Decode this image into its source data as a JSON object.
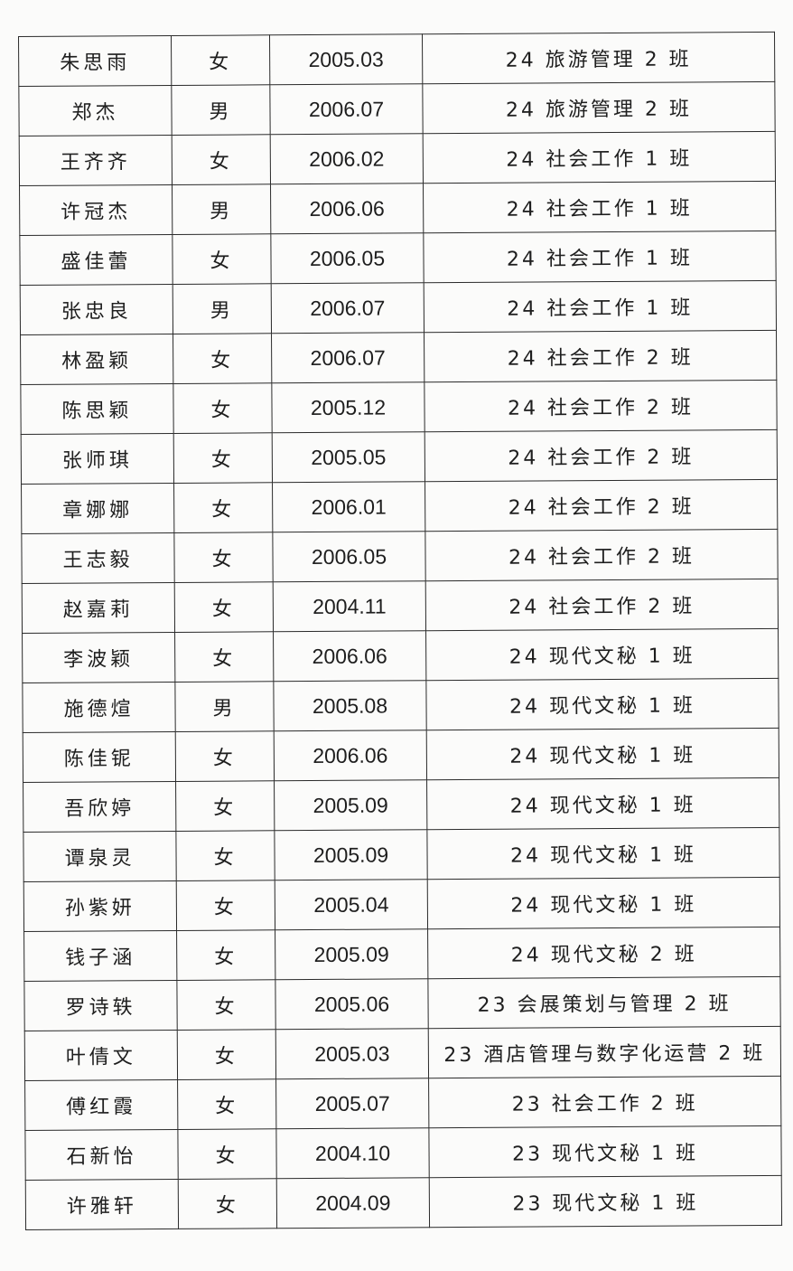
{
  "rows": [
    {
      "name": "朱思雨",
      "gender": "女",
      "birth": "2005.03",
      "class": "24 旅游管理 2 班"
    },
    {
      "name": "郑杰",
      "gender": "男",
      "birth": "2006.07",
      "class": "24 旅游管理 2 班"
    },
    {
      "name": "王齐齐",
      "gender": "女",
      "birth": "2006.02",
      "class": "24 社会工作 1 班"
    },
    {
      "name": "许冠杰",
      "gender": "男",
      "birth": "2006.06",
      "class": "24 社会工作 1 班"
    },
    {
      "name": "盛佳蕾",
      "gender": "女",
      "birth": "2006.05",
      "class": "24 社会工作 1 班"
    },
    {
      "name": "张忠良",
      "gender": "男",
      "birth": "2006.07",
      "class": "24 社会工作 1 班"
    },
    {
      "name": "林盈颖",
      "gender": "女",
      "birth": "2006.07",
      "class": "24 社会工作 2 班"
    },
    {
      "name": "陈思颖",
      "gender": "女",
      "birth": "2005.12",
      "class": "24 社会工作 2 班"
    },
    {
      "name": "张师琪",
      "gender": "女",
      "birth": "2005.05",
      "class": "24 社会工作 2 班"
    },
    {
      "name": "章娜娜",
      "gender": "女",
      "birth": "2006.01",
      "class": "24 社会工作 2 班"
    },
    {
      "name": "王志毅",
      "gender": "女",
      "birth": "2006.05",
      "class": "24 社会工作 2 班"
    },
    {
      "name": "赵嘉莉",
      "gender": "女",
      "birth": "2004.11",
      "class": "24 社会工作 2 班"
    },
    {
      "name": "李波颖",
      "gender": "女",
      "birth": "2006.06",
      "class": "24 现代文秘 1 班"
    },
    {
      "name": "施德煊",
      "gender": "男",
      "birth": "2005.08",
      "class": "24 现代文秘 1 班"
    },
    {
      "name": "陈佳铌",
      "gender": "女",
      "birth": "2006.06",
      "class": "24 现代文秘 1 班"
    },
    {
      "name": "吾欣婷",
      "gender": "女",
      "birth": "2005.09",
      "class": "24 现代文秘 1 班"
    },
    {
      "name": "谭泉灵",
      "gender": "女",
      "birth": "2005.09",
      "class": "24 现代文秘 1 班"
    },
    {
      "name": "孙紫妍",
      "gender": "女",
      "birth": "2005.04",
      "class": "24 现代文秘 1 班"
    },
    {
      "name": "钱子涵",
      "gender": "女",
      "birth": "2005.09",
      "class": "24 现代文秘 2 班"
    },
    {
      "name": "罗诗轶",
      "gender": "女",
      "birth": "2005.06",
      "class": "23 会展策划与管理 2 班"
    },
    {
      "name": "叶倩文",
      "gender": "女",
      "birth": "2005.03",
      "class": "23 酒店管理与数字化运营 2 班"
    },
    {
      "name": "傅红霞",
      "gender": "女",
      "birth": "2005.07",
      "class": "23 社会工作 2 班"
    },
    {
      "name": "石新怡",
      "gender": "女",
      "birth": "2004.10",
      "class": "23 现代文秘 1 班"
    },
    {
      "name": "许雅轩",
      "gender": "女",
      "birth": "2004.09",
      "class": "23 现代文秘 1 班"
    }
  ]
}
